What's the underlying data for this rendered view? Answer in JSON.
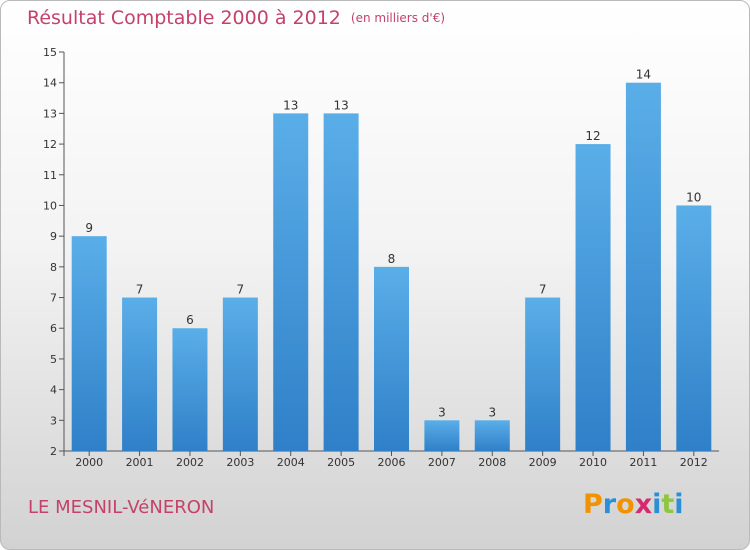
{
  "header": {
    "title": "Résultat Comptable 2000 à 2012",
    "subtitle": "(en milliers d'€)"
  },
  "footer": {
    "place": "LE MESNIL-VéNERON",
    "logo_letters": [
      "P",
      "r",
      "o",
      "x",
      "i",
      "t",
      "i"
    ],
    "logo_colors": [
      "#f39200",
      "#2a8fd6",
      "#f39200",
      "#d62a6e",
      "#2a8fd6",
      "#8dc63f",
      "#2a8fd6"
    ]
  },
  "colors": {
    "bar_light": "#5aaee8",
    "bar_dark": "#2f80c8",
    "accent": "#c4426a"
  },
  "chart_data": {
    "type": "bar",
    "title": "Résultat Comptable 2000 à 2012",
    "subtitle": "(en milliers d'€)",
    "xlabel": "",
    "ylabel": "",
    "categories": [
      "2000",
      "2001",
      "2002",
      "2003",
      "2004",
      "2005",
      "2006",
      "2007",
      "2008",
      "2009",
      "2010",
      "2011",
      "2012"
    ],
    "values": [
      9,
      7,
      6,
      7,
      13,
      13,
      8,
      3,
      3,
      7,
      12,
      14,
      10
    ],
    "ylim": [
      2,
      15
    ],
    "yticks": [
      2,
      3,
      4,
      5,
      6,
      7,
      8,
      9,
      10,
      11,
      12,
      13,
      14,
      15
    ],
    "grid": false
  }
}
